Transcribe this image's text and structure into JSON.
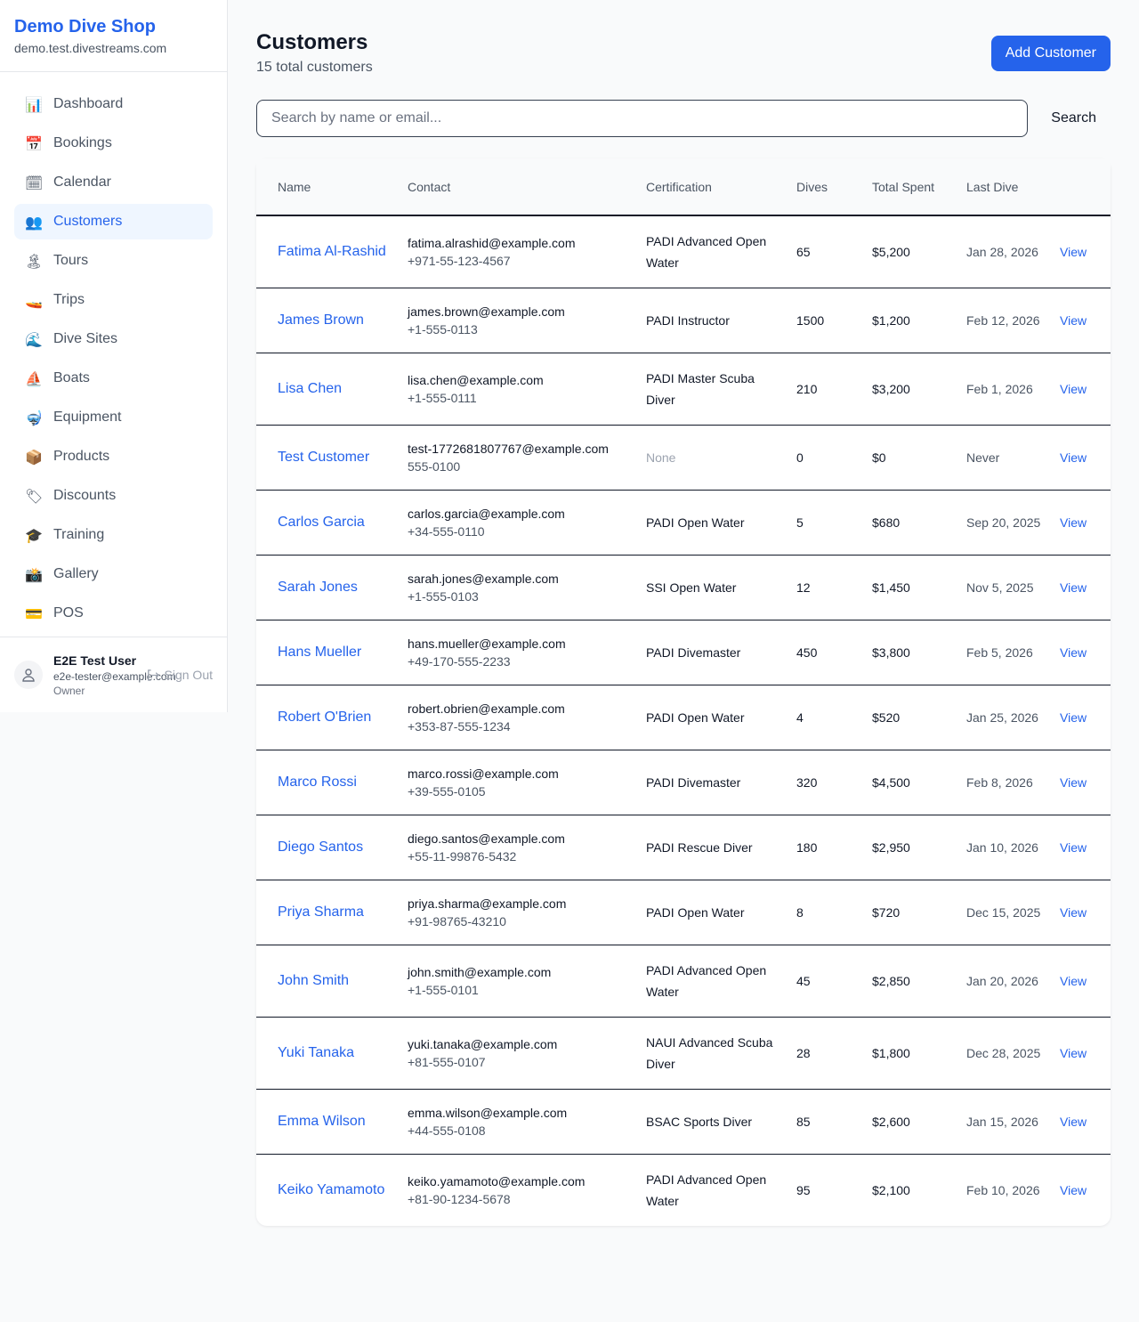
{
  "brand": {
    "name": "Demo Dive Shop",
    "domain": "demo.test.divestreams.com"
  },
  "nav": [
    {
      "icon": "📊",
      "label": "Dashboard"
    },
    {
      "icon": "📅",
      "label": "Bookings"
    },
    {
      "icon": "🗓",
      "label": "Calendar"
    },
    {
      "icon": "👥",
      "label": "Customers",
      "active": true
    },
    {
      "icon": "🏝",
      "label": "Tours"
    },
    {
      "icon": "🚤",
      "label": "Trips"
    },
    {
      "icon": "🌊",
      "label": "Dive Sites"
    },
    {
      "icon": "⛵",
      "label": "Boats"
    },
    {
      "icon": "🤿",
      "label": "Equipment"
    },
    {
      "icon": "📦",
      "label": "Products"
    },
    {
      "icon": "🏷",
      "label": "Discounts"
    },
    {
      "icon": "🎓",
      "label": "Training"
    },
    {
      "icon": "📸",
      "label": "Gallery"
    },
    {
      "icon": "💳",
      "label": "POS"
    }
  ],
  "user": {
    "name": "E2E Test User",
    "email": "e2e-tester@example.com",
    "role": "Owner",
    "signout": "Sign Out"
  },
  "header": {
    "title": "Customers",
    "subtitle": "15 total customers",
    "add": "Add Customer"
  },
  "search": {
    "placeholder": "Search by name or email...",
    "button": "Search"
  },
  "table": {
    "headers": [
      "Name",
      "Contact",
      "Certification",
      "Dives",
      "Total Spent",
      "Last Dive"
    ],
    "view_label": "View",
    "rows": [
      {
        "name": "Fatima Al-Rashid",
        "email": "fatima.alrashid@example.com",
        "phone": "+971-55-123-4567",
        "cert": "PADI Advanced Open Water",
        "dives": "65",
        "spent": "$5,200",
        "last": "Jan 28, 2026"
      },
      {
        "name": "James Brown",
        "email": "james.brown@example.com",
        "phone": "+1-555-0113",
        "cert": "PADI Instructor",
        "dives": "1500",
        "spent": "$1,200",
        "last": "Feb 12, 2026"
      },
      {
        "name": "Lisa Chen",
        "email": "lisa.chen@example.com",
        "phone": "+1-555-0111",
        "cert": "PADI Master Scuba Diver",
        "dives": "210",
        "spent": "$3,200",
        "last": "Feb 1, 2026"
      },
      {
        "name": "Test Customer",
        "email": "test-1772681807767@example.com",
        "phone": "555-0100",
        "cert": "None",
        "dives": "0",
        "spent": "$0",
        "last": "Never"
      },
      {
        "name": "Carlos Garcia",
        "email": "carlos.garcia@example.com",
        "phone": "+34-555-0110",
        "cert": "PADI Open Water",
        "dives": "5",
        "spent": "$680",
        "last": "Sep 20, 2025"
      },
      {
        "name": "Sarah Jones",
        "email": "sarah.jones@example.com",
        "phone": "+1-555-0103",
        "cert": "SSI Open Water",
        "dives": "12",
        "spent": "$1,450",
        "last": "Nov 5, 2025"
      },
      {
        "name": "Hans Mueller",
        "email": "hans.mueller@example.com",
        "phone": "+49-170-555-2233",
        "cert": "PADI Divemaster",
        "dives": "450",
        "spent": "$3,800",
        "last": "Feb 5, 2026"
      },
      {
        "name": "Robert O'Brien",
        "email": "robert.obrien@example.com",
        "phone": "+353-87-555-1234",
        "cert": "PADI Open Water",
        "dives": "4",
        "spent": "$520",
        "last": "Jan 25, 2026"
      },
      {
        "name": "Marco Rossi",
        "email": "marco.rossi@example.com",
        "phone": "+39-555-0105",
        "cert": "PADI Divemaster",
        "dives": "320",
        "spent": "$4,500",
        "last": "Feb 8, 2026"
      },
      {
        "name": "Diego Santos",
        "email": "diego.santos@example.com",
        "phone": "+55-11-99876-5432",
        "cert": "PADI Rescue Diver",
        "dives": "180",
        "spent": "$2,950",
        "last": "Jan 10, 2026"
      },
      {
        "name": "Priya Sharma",
        "email": "priya.sharma@example.com",
        "phone": "+91-98765-43210",
        "cert": "PADI Open Water",
        "dives": "8",
        "spent": "$720",
        "last": "Dec 15, 2025"
      },
      {
        "name": "John Smith",
        "email": "john.smith@example.com",
        "phone": "+1-555-0101",
        "cert": "PADI Advanced Open Water",
        "dives": "45",
        "spent": "$2,850",
        "last": "Jan 20, 2026"
      },
      {
        "name": "Yuki Tanaka",
        "email": "yuki.tanaka@example.com",
        "phone": "+81-555-0107",
        "cert": "NAUI Advanced Scuba Diver",
        "dives": "28",
        "spent": "$1,800",
        "last": "Dec 28, 2025"
      },
      {
        "name": "Emma Wilson",
        "email": "emma.wilson@example.com",
        "phone": "+44-555-0108",
        "cert": "BSAC Sports Diver",
        "dives": "85",
        "spent": "$2,600",
        "last": "Jan 15, 2026"
      },
      {
        "name": "Keiko Yamamoto",
        "email": "keiko.yamamoto@example.com",
        "phone": "+81-90-1234-5678",
        "cert": "PADI Advanced Open Water",
        "dives": "95",
        "spent": "$2,100",
        "last": "Feb 10, 2026"
      }
    ]
  }
}
